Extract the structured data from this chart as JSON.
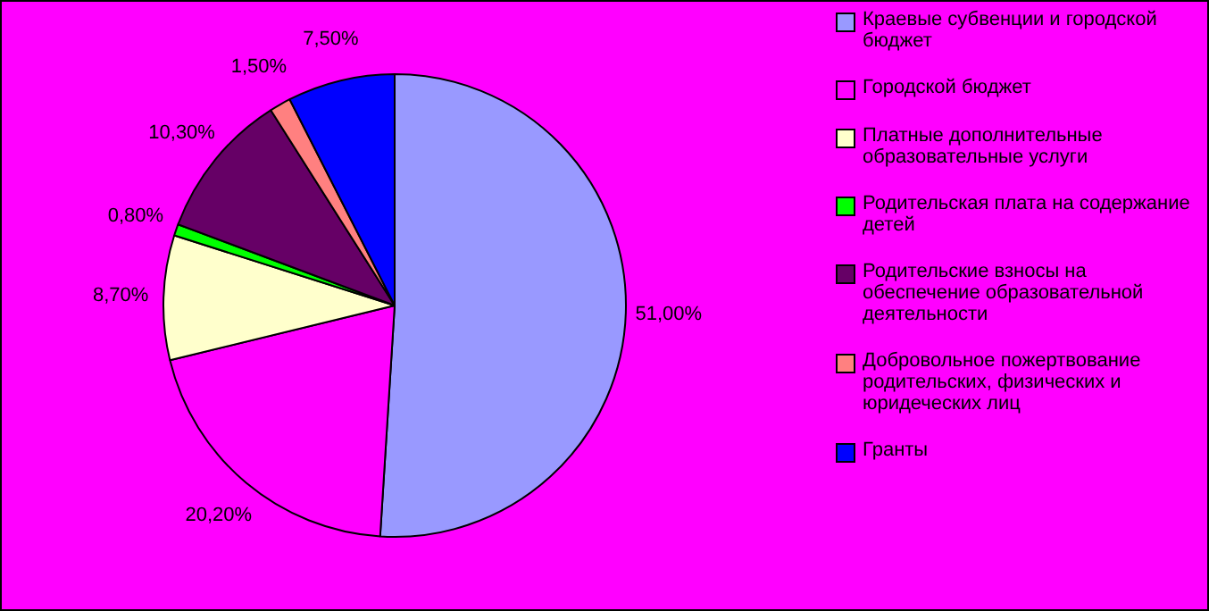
{
  "chart_data": {
    "type": "pie",
    "categories": [
      "Краевые субвенции и городской бюджет",
      "Городской бюджет",
      "Платные дополнительные образовательные услуги",
      "Родительская плата на содержание детей",
      "Родительские взносы на обеспечение образовательной деятельности",
      "Добровольное пожертвование родительских, физических и юридеческих лиц",
      "Гранты"
    ],
    "values": [
      51,
      20.2,
      8.7,
      0.8,
      10.3,
      1.5,
      7.5
    ],
    "colors": [
      "#9999ff",
      "#ff00ff",
      "#ffffcc",
      "#00ff00",
      "#660066",
      "#ff8080",
      "#0000ff"
    ],
    "value_labels": [
      "51,00%",
      "20,20%",
      "8,70%",
      "0,80%",
      "10,30%",
      "1,50%",
      "7,50%"
    ],
    "legend": "right"
  }
}
